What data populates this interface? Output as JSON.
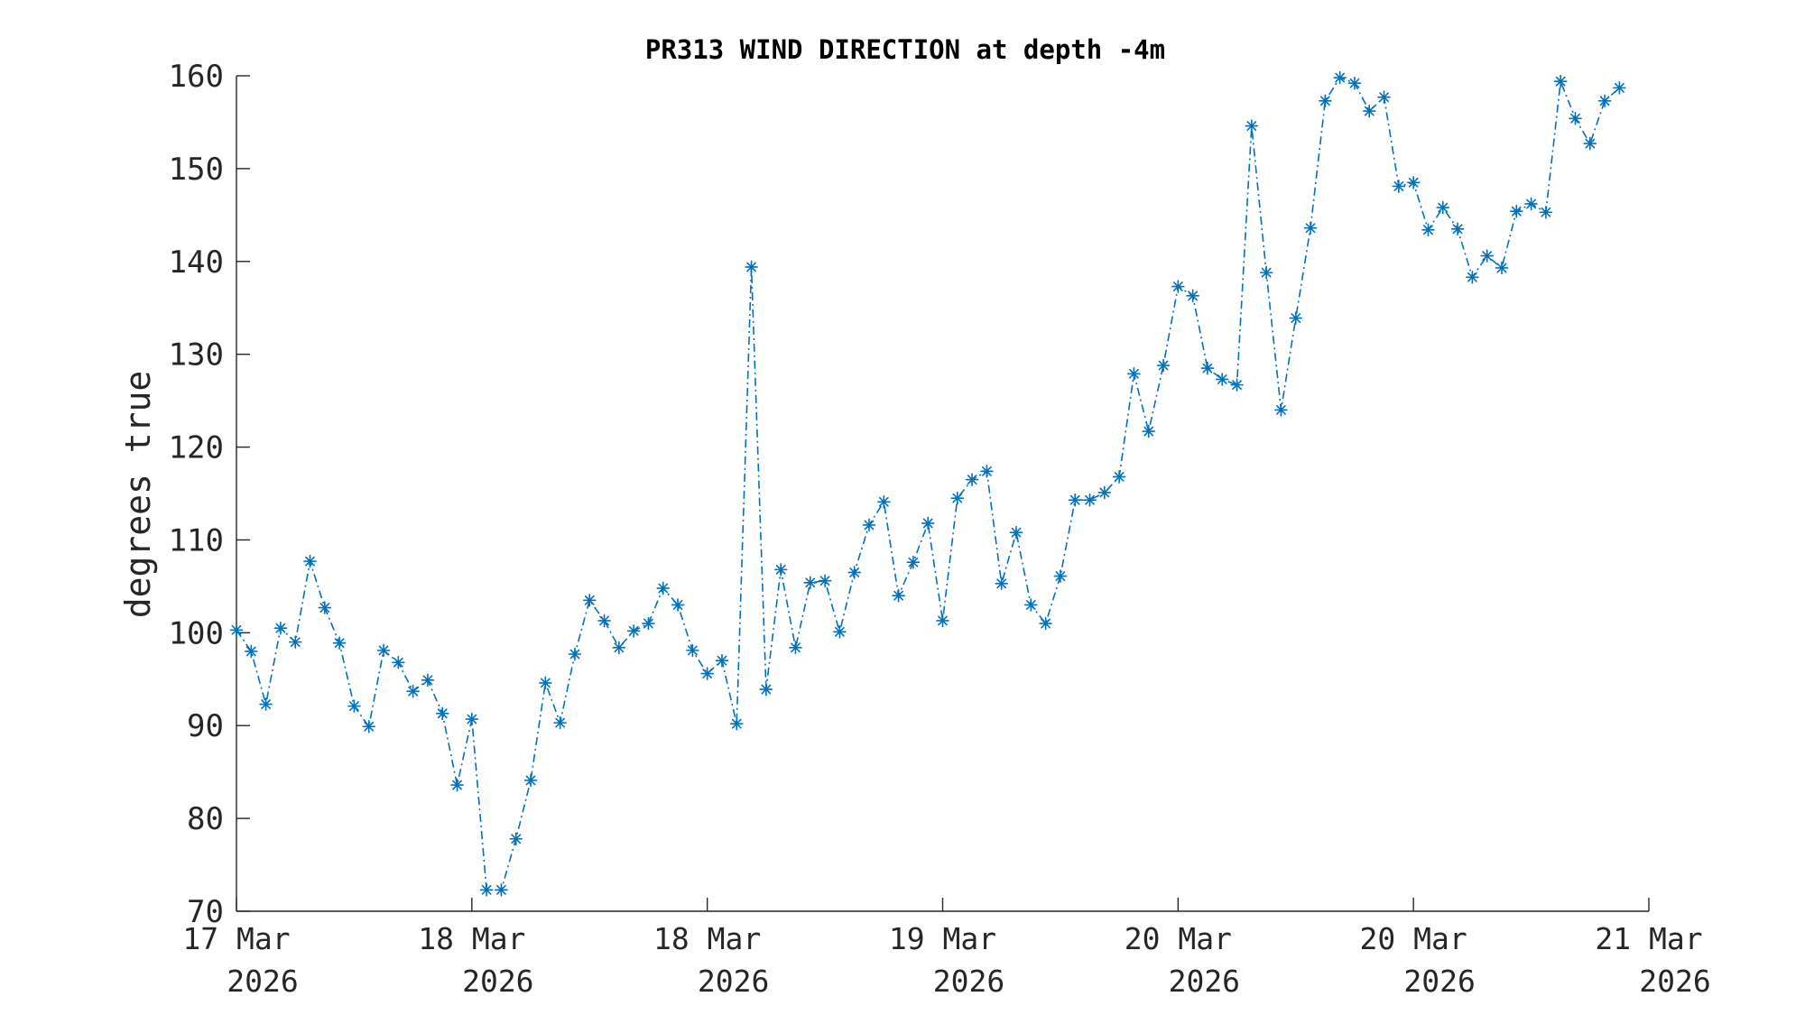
{
  "chart_data": {
    "type": "line",
    "title": "PR313 WIND DIRECTION at depth -4m",
    "xlabel": "",
    "ylabel": "degrees true",
    "ylim": [
      70,
      160
    ],
    "yticks": [
      70,
      80,
      90,
      100,
      110,
      120,
      130,
      140,
      150,
      160
    ],
    "xlim": [
      0,
      96
    ],
    "xticks": [
      {
        "x": 0,
        "line1": "17 Mar",
        "line2": "2026"
      },
      {
        "x": 16,
        "line1": "18 Mar",
        "line2": "2026"
      },
      {
        "x": 32,
        "line1": "18 Mar",
        "line2": "2026"
      },
      {
        "x": 48,
        "line1": "19 Mar",
        "line2": "2026"
      },
      {
        "x": 64,
        "line1": "20 Mar",
        "line2": "2026"
      },
      {
        "x": 80,
        "line1": "20 Mar",
        "line2": "2026"
      },
      {
        "x": 96,
        "line1": "21 Mar",
        "line2": "2026"
      }
    ],
    "grid": false,
    "line_style": "dash-dot",
    "marker": "asterisk",
    "series_color": "#0072BD",
    "series": [
      {
        "values": [
          100.3,
          98.0,
          92.3,
          100.5,
          99.0,
          107.7,
          102.7,
          98.9,
          92.1,
          89.9,
          98.1,
          96.8,
          93.7,
          94.9,
          91.3,
          83.6,
          90.7,
          72.3,
          72.3,
          77.8,
          84.1,
          94.6,
          90.3,
          97.7,
          103.5,
          101.3,
          98.4,
          100.2,
          101.0,
          104.8,
          103.0,
          98.1,
          95.6,
          97.0,
          90.2,
          139.4,
          93.9,
          106.8,
          98.4,
          105.4,
          105.6,
          100.1,
          106.5,
          111.6,
          114.1,
          104.0,
          107.6,
          111.8,
          101.3,
          114.5,
          116.5,
          117.4,
          105.3,
          110.8,
          103.0,
          101.0,
          106.1,
          114.3,
          114.3,
          115.1,
          116.8,
          127.9,
          121.7,
          128.8,
          137.3,
          136.3,
          128.5,
          127.3,
          126.7,
          154.6,
          138.8,
          124.0,
          133.9,
          143.6,
          157.3,
          159.8,
          159.2,
          156.2,
          157.7,
          148.1,
          148.5,
          143.4,
          145.8,
          143.5,
          138.3,
          140.6,
          139.3,
          145.4,
          146.2,
          145.3,
          159.4,
          155.4,
          152.7,
          157.3,
          158.7
        ]
      }
    ]
  }
}
